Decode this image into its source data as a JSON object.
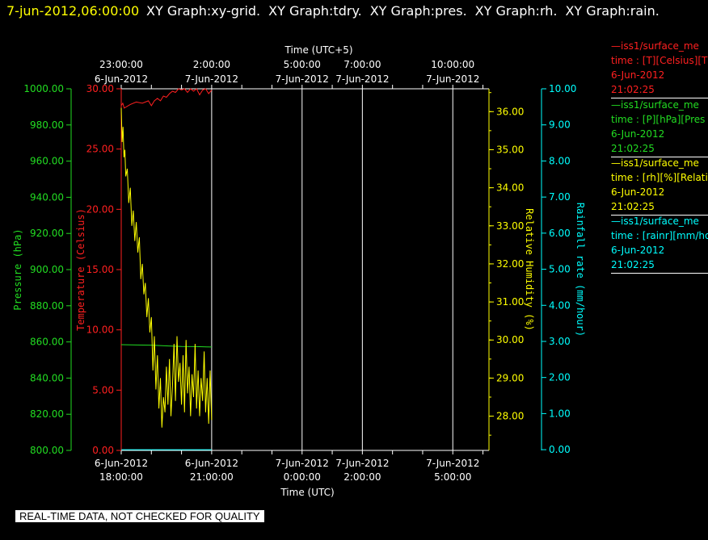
{
  "header": {
    "date": "7-jun-2012,06:00:00",
    "graph_titles": [
      "XY Graph:xy-grid.",
      "XY Graph:tdry.",
      "XY Graph:pres.",
      "XY Graph:rh.",
      "XY Graph:rain."
    ]
  },
  "quality_banner": "REAL-TIME DATA, NOT CHECKED FOR QUALITY",
  "legend": [
    {
      "id": "t",
      "color": "#ff2020",
      "series": "—iss1/surface_me",
      "var": "time : [T][Celsius][T",
      "date": "6-Jun-2012",
      "time": "21:02:25"
    },
    {
      "id": "p",
      "color": "#22dd22",
      "series": "—iss1/surface_me",
      "var": "time : [P][hPa][Pres",
      "date": "6-Jun-2012",
      "time": "21:02:25"
    },
    {
      "id": "rh",
      "color": "#ffff00",
      "series": "—iss1/surface_me",
      "var": "time : [rh][%][Relati",
      "date": "6-Jun-2012",
      "time": "21:02:25"
    },
    {
      "id": "r",
      "color": "#00ffff",
      "series": "—iss1/surface_me",
      "var": "time : [rainr][mm/ho",
      "date": "6-Jun-2012",
      "time": "21:02:25"
    }
  ],
  "chart_data": {
    "type": "line",
    "xlabel": "Time (UTC)",
    "x2label": "Time (UTC+5)",
    "x_ticks_bottom": [
      {
        "date": "6-Jun-2012",
        "time": "18:00:00"
      },
      {
        "date": "6-Jun-2012",
        "time": "21:00:00"
      },
      {
        "date": "7-Jun-2012",
        "time": "0:00:00"
      },
      {
        "date": "7-Jun-2012",
        "time": "2:00:00"
      },
      {
        "date": "7-Jun-2012",
        "time": "5:00:00"
      }
    ],
    "x_ticks_top": [
      {
        "time": "23:00:00",
        "date": "6-Jun-2012"
      },
      {
        "time": "2:00:00",
        "date": "7-Jun-2012"
      },
      {
        "time": "5:00:00",
        "date": "7-Jun-2012"
      },
      {
        "time": "7:00:00",
        "date": "7-Jun-2012"
      },
      {
        "time": "10:00:00",
        "date": "7-Jun-2012"
      }
    ],
    "x_tick_hours": [
      0,
      3,
      6,
      8,
      11
    ],
    "xlim_hours": [
      0,
      12.2
    ],
    "axes": {
      "pressure": {
        "label": "Pressure (hPa)",
        "color": "#22dd22",
        "ylim": [
          800,
          1000
        ],
        "ticks": [
          800,
          820,
          840,
          860,
          880,
          900,
          920,
          940,
          960,
          980,
          1000
        ],
        "fmt": 2
      },
      "temperature": {
        "label": "Temperature (Celsius)",
        "color": "#ff2020",
        "ylim": [
          0,
          30
        ],
        "ticks": [
          0,
          5,
          10,
          15,
          20,
          25,
          30
        ],
        "fmt": 2
      },
      "humidity": {
        "label": "Relative Humidity (%)",
        "color": "#ffff00",
        "ylim": [
          27.1,
          36.6
        ],
        "ticks": [
          28,
          29,
          30,
          31,
          32,
          33,
          34,
          35,
          36
        ],
        "fmt": 2
      },
      "rain": {
        "label": "Rainfall rate (mm/hour)",
        "color": "#00ffff",
        "ylim": [
          -0.02,
          10
        ],
        "ticks": [
          0,
          1,
          2,
          3,
          4,
          5,
          6,
          7,
          8,
          9,
          10
        ],
        "fmt": 2
      }
    },
    "series": [
      {
        "name": "T",
        "axis": "temperature",
        "color": "#ff2020",
        "x": [
          0,
          0.05,
          0.1,
          0.3,
          0.5,
          0.7,
          0.9,
          1.0,
          1.1,
          1.2,
          1.3,
          1.4,
          1.5,
          1.6,
          1.7,
          1.8,
          1.9,
          2.0,
          2.1,
          2.2,
          2.3,
          2.4,
          2.5,
          2.6,
          2.7,
          2.8,
          2.9,
          3.0
        ],
        "values": [
          28.6,
          28.8,
          28.4,
          28.7,
          28.9,
          28.8,
          29.0,
          28.6,
          29.0,
          29.2,
          29.0,
          29.4,
          29.3,
          29.6,
          29.8,
          29.7,
          30.0,
          29.9,
          30.0,
          29.7,
          30.0,
          29.8,
          30.0,
          29.5,
          29.9,
          30.0,
          29.6,
          29.9
        ]
      },
      {
        "name": "P",
        "axis": "pressure",
        "color": "#22dd22",
        "x": [
          0,
          0.5,
          1.0,
          1.5,
          2.0,
          2.5,
          3.0
        ],
        "values": [
          858.5,
          858.3,
          858.2,
          857.8,
          857.5,
          857.4,
          857.2
        ]
      },
      {
        "name": "rh",
        "axis": "humidity",
        "color": "#ffff00",
        "x": [
          0,
          0.03,
          0.06,
          0.09,
          0.12,
          0.15,
          0.2,
          0.25,
          0.3,
          0.35,
          0.4,
          0.45,
          0.5,
          0.55,
          0.6,
          0.65,
          0.7,
          0.75,
          0.8,
          0.85,
          0.9,
          0.95,
          1.0,
          1.05,
          1.1,
          1.15,
          1.2,
          1.25,
          1.3,
          1.35,
          1.4,
          1.45,
          1.5,
          1.55,
          1.6,
          1.65,
          1.7,
          1.75,
          1.8,
          1.85,
          1.9,
          1.95,
          2.0,
          2.05,
          2.1,
          2.15,
          2.2,
          2.25,
          2.3,
          2.35,
          2.4,
          2.45,
          2.5,
          2.55,
          2.6,
          2.65,
          2.7,
          2.75,
          2.8,
          2.85,
          2.9,
          2.95,
          3.0
        ],
        "values": [
          36.1,
          35.2,
          35.6,
          34.8,
          35.0,
          34.3,
          34.5,
          33.6,
          34.0,
          33.0,
          33.4,
          32.6,
          33.1,
          32.3,
          32.7,
          31.6,
          32.0,
          31.2,
          31.5,
          30.6,
          31.1,
          30.2,
          30.6,
          29.2,
          30.1,
          28.7,
          29.6,
          28.2,
          29.0,
          27.7,
          28.5,
          28.1,
          29.3,
          28.3,
          29.5,
          28.0,
          28.8,
          29.9,
          28.4,
          30.1,
          28.9,
          29.4,
          28.3,
          29.6,
          28.1,
          30.0,
          28.6,
          29.3,
          28.0,
          29.1,
          28.5,
          29.9,
          28.2,
          29.2,
          28.0,
          29.0,
          28.4,
          29.7,
          28.1,
          29.0,
          27.8,
          29.2,
          27.9
        ]
      },
      {
        "name": "rainr",
        "axis": "rain",
        "color": "#00ffff",
        "x": [
          0,
          3.0
        ],
        "values": [
          0,
          0
        ]
      }
    ],
    "grid": true
  }
}
